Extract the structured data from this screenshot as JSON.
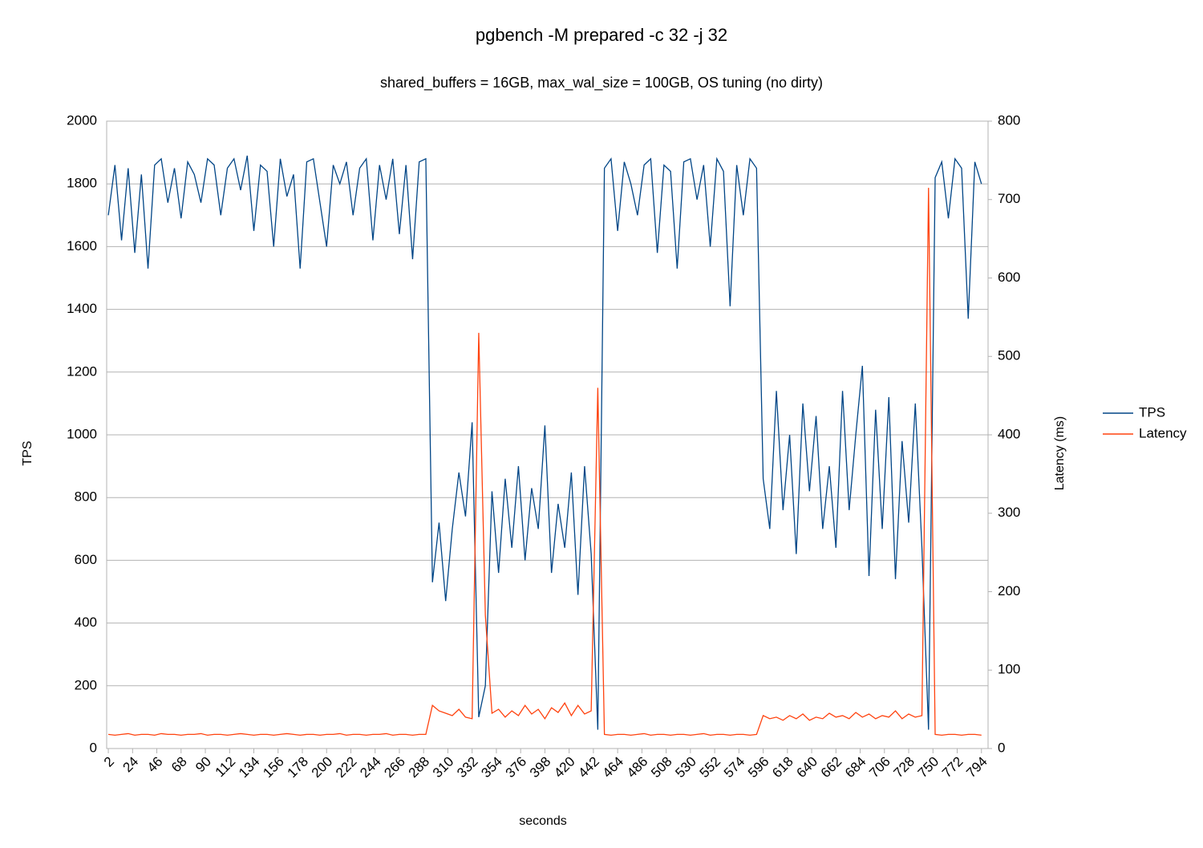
{
  "chart_data": {
    "type": "line",
    "title": "pgbench -M prepared -c 32 -j 32",
    "subtitle": "shared_buffers = 16GB, max_wal_size = 100GB, OS tuning (no dirty)",
    "x_label": "seconds",
    "y_label": "TPS",
    "y2_label": "Latency (ms)",
    "x": [
      2,
      8,
      14,
      20,
      26,
      32,
      38,
      44,
      50,
      56,
      62,
      68,
      74,
      80,
      86,
      92,
      98,
      104,
      110,
      116,
      122,
      128,
      134,
      140,
      146,
      152,
      158,
      164,
      170,
      176,
      182,
      188,
      194,
      200,
      206,
      212,
      218,
      224,
      230,
      236,
      242,
      248,
      254,
      260,
      266,
      272,
      278,
      284,
      290,
      296,
      302,
      308,
      314,
      320,
      326,
      332,
      338,
      344,
      350,
      356,
      362,
      368,
      374,
      380,
      386,
      392,
      398,
      404,
      410,
      416,
      422,
      428,
      434,
      440,
      446,
      452,
      458,
      464,
      470,
      476,
      482,
      488,
      494,
      500,
      506,
      512,
      518,
      524,
      530,
      536,
      542,
      548,
      554,
      560,
      566,
      572,
      578,
      584,
      590,
      596,
      602,
      608,
      614,
      620,
      626,
      632,
      638,
      644,
      650,
      656,
      662,
      668,
      674,
      680,
      686,
      692,
      698,
      704,
      710,
      716,
      722,
      728,
      734,
      740,
      746,
      752,
      758,
      764,
      770,
      776,
      782,
      788,
      794
    ],
    "xlim": [
      0.5,
      800
    ],
    "xticks": [
      2,
      24,
      46,
      68,
      90,
      112,
      134,
      156,
      178,
      200,
      222,
      244,
      266,
      288,
      310,
      332,
      354,
      376,
      398,
      420,
      442,
      464,
      486,
      508,
      530,
      552,
      574,
      596,
      618,
      640,
      662,
      684,
      706,
      728,
      750,
      772,
      794
    ],
    "ylim": [
      0,
      2000
    ],
    "yticks": [
      0,
      200,
      400,
      600,
      800,
      1000,
      1200,
      1400,
      1600,
      1800,
      2000
    ],
    "y2lim": [
      0,
      800
    ],
    "y2ticks": [
      0,
      100,
      200,
      300,
      400,
      500,
      600,
      700,
      800
    ],
    "grid": true,
    "legend": "right",
    "series": [
      {
        "name": "TPS",
        "color": "#004586",
        "values": [
          1700,
          1860,
          1620,
          1850,
          1580,
          1830,
          1530,
          1860,
          1880,
          1740,
          1850,
          1690,
          1870,
          1830,
          1740,
          1880,
          1860,
          1700,
          1850,
          1880,
          1780,
          1890,
          1650,
          1860,
          1840,
          1600,
          1880,
          1760,
          1830,
          1530,
          1870,
          1880,
          1740,
          1600,
          1860,
          1800,
          1870,
          1700,
          1850,
          1880,
          1620,
          1860,
          1750,
          1880,
          1640,
          1860,
          1560,
          1870,
          1880,
          530,
          720,
          470,
          700,
          880,
          740,
          1040,
          100,
          200,
          820,
          560,
          860,
          640,
          900,
          600,
          830,
          700,
          1030,
          560,
          780,
          640,
          880,
          490,
          900,
          620,
          60,
          1850,
          1880,
          1650,
          1870,
          1800,
          1700,
          1860,
          1880,
          1580,
          1860,
          1840,
          1530,
          1870,
          1880,
          1750,
          1860,
          1600,
          1880,
          1840,
          1410,
          1860,
          1700,
          1880,
          1850,
          860,
          700,
          1140,
          760,
          1000,
          620,
          1100,
          820,
          1060,
          700,
          900,
          640,
          1140,
          760,
          1000,
          1220,
          550,
          1080,
          700,
          1120,
          540,
          980,
          720,
          1100,
          640,
          60,
          1820,
          1870,
          1690,
          1880,
          1850,
          1370,
          1870,
          1800
        ]
      },
      {
        "name": "Latency",
        "color": "#ff420e",
        "axis": "y2",
        "values": [
          18,
          17,
          18,
          19,
          17,
          18,
          18,
          17,
          19,
          18,
          18,
          17,
          18,
          18,
          19,
          17,
          18,
          18,
          17,
          18,
          19,
          18,
          17,
          18,
          18,
          17,
          18,
          19,
          18,
          17,
          18,
          18,
          17,
          18,
          18,
          19,
          17,
          18,
          18,
          17,
          18,
          18,
          19,
          17,
          18,
          18,
          17,
          18,
          18,
          55,
          48,
          45,
          42,
          50,
          40,
          38,
          530,
          170,
          45,
          50,
          40,
          48,
          42,
          55,
          44,
          50,
          38,
          52,
          46,
          58,
          42,
          55,
          44,
          48,
          460,
          18,
          17,
          18,
          18,
          17,
          18,
          19,
          17,
          18,
          18,
          17,
          18,
          18,
          17,
          18,
          19,
          17,
          18,
          18,
          17,
          18,
          18,
          17,
          18,
          42,
          38,
          40,
          36,
          42,
          38,
          44,
          36,
          40,
          38,
          45,
          40,
          42,
          38,
          46,
          40,
          44,
          38,
          42,
          40,
          48,
          38,
          44,
          40,
          42,
          715,
          18,
          17,
          18,
          18,
          17,
          18,
          18,
          17
        ]
      }
    ]
  }
}
